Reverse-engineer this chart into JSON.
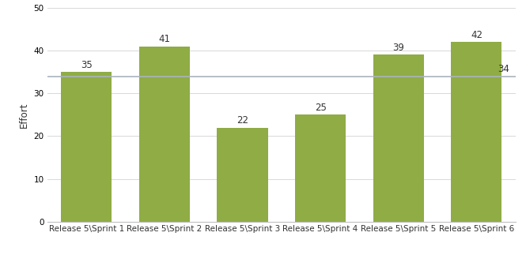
{
  "categories": [
    "Release 5\\Sprint 1",
    "Release 5\\Sprint 2",
    "Release 5\\Sprint 3",
    "Release 5\\Sprint 4",
    "Release 5\\Sprint 5",
    "Release 5\\Sprint 6"
  ],
  "values": [
    35,
    41,
    22,
    25,
    39,
    42
  ],
  "bar_color": "#8fac45",
  "avg_line_value": 34,
  "avg_line_color": "#aab4bc",
  "ylabel": "Effort",
  "ylim": [
    0,
    50
  ],
  "yticks": [
    0,
    10,
    20,
    30,
    40,
    50
  ],
  "grid_color": "#d8d8d8",
  "background_color": "#ffffff",
  "bar_label_fontsize": 8.5,
  "axis_label_fontsize": 8.5,
  "tick_label_fontsize": 7.5
}
